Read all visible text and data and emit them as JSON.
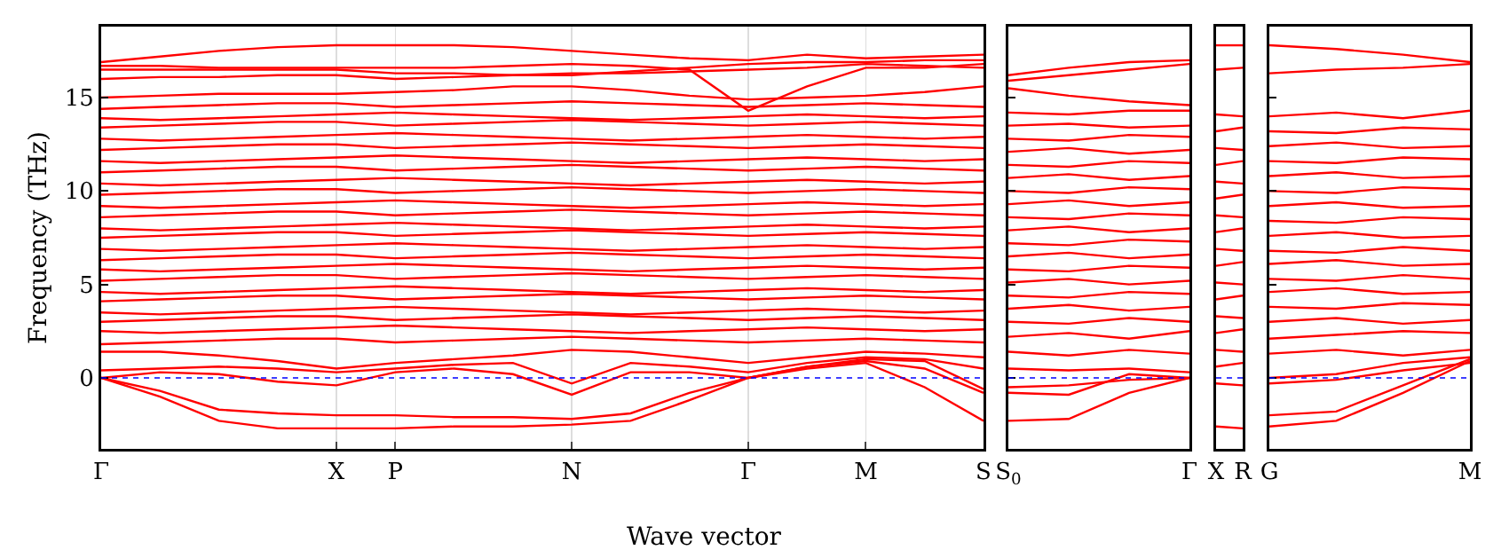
{
  "chart_data": [
    {
      "type": "line",
      "xlabel": "Wave vector",
      "ylabel": "Frequency (THz)",
      "ylim": [
        -3.8,
        18.8
      ],
      "yticks": [
        0,
        5,
        10,
        15
      ],
      "categories": [
        "Γ",
        null,
        null,
        null,
        "X",
        "P",
        null,
        null,
        "N",
        null,
        null,
        "Γ",
        null,
        "M",
        null,
        "S"
      ],
      "grid": "x",
      "ref_lines": [
        {
          "axis": "y",
          "value": 0,
          "color": "#0000ff",
          "line_style": "dotted"
        }
      ],
      "series": [
        {
          "color": "#ff0000",
          "values": [
            0,
            -1.0,
            -2.3,
            -2.7,
            -2.7,
            -2.7,
            -2.6,
            -2.6,
            -2.5,
            -2.3,
            -1.2,
            0,
            0.5,
            0.8,
            -0.5,
            -2.3
          ]
        },
        {
          "color": "#ff0000",
          "values": [
            0,
            -0.7,
            -1.7,
            -1.9,
            -2.0,
            -2.0,
            -2.1,
            -2.1,
            -2.2,
            -1.9,
            -0.8,
            0,
            0.6,
            0.9,
            0.5,
            -0.8
          ]
        },
        {
          "color": "#ff0000",
          "values": [
            0,
            0.3,
            0.2,
            -0.2,
            -0.4,
            0.3,
            0.5,
            0.2,
            -0.9,
            0.3,
            0.3,
            0,
            0.6,
            1.0,
            0.9,
            -0.6
          ]
        },
        {
          "color": "#ff0000",
          "values": [
            0.4,
            0.5,
            0.6,
            0.5,
            0.3,
            0.5,
            0.7,
            0.8,
            -0.3,
            0.8,
            0.6,
            0.3,
            0.8,
            1.1,
            1.0,
            0.5
          ]
        },
        {
          "color": "#ff0000",
          "values": [
            1.4,
            1.4,
            1.2,
            0.9,
            0.5,
            0.8,
            1.0,
            1.2,
            1.5,
            1.4,
            1.1,
            0.8,
            1.1,
            1.4,
            1.3,
            1.1
          ]
        },
        {
          "color": "#ff0000",
          "values": [
            1.8,
            1.9,
            2.0,
            2.1,
            2.1,
            1.9,
            2.0,
            2.1,
            2.2,
            2.1,
            2.0,
            1.9,
            2.0,
            2.1,
            2.0,
            1.9
          ]
        },
        {
          "color": "#ff0000",
          "values": [
            2.5,
            2.4,
            2.5,
            2.6,
            2.7,
            2.8,
            2.7,
            2.6,
            2.5,
            2.4,
            2.5,
            2.6,
            2.7,
            2.6,
            2.5,
            2.6
          ]
        },
        {
          "color": "#ff0000",
          "values": [
            3.0,
            3.1,
            3.2,
            3.3,
            3.3,
            3.1,
            3.2,
            3.3,
            3.4,
            3.3,
            3.2,
            3.1,
            3.2,
            3.3,
            3.2,
            3.1
          ]
        },
        {
          "color": "#ff0000",
          "values": [
            3.5,
            3.4,
            3.5,
            3.6,
            3.7,
            3.8,
            3.7,
            3.6,
            3.5,
            3.4,
            3.5,
            3.6,
            3.7,
            3.6,
            3.5,
            3.6
          ]
        },
        {
          "color": "#ff0000",
          "values": [
            4.1,
            4.2,
            4.3,
            4.4,
            4.4,
            4.2,
            4.3,
            4.4,
            4.5,
            4.4,
            4.3,
            4.2,
            4.3,
            4.4,
            4.3,
            4.2
          ]
        },
        {
          "color": "#ff0000",
          "values": [
            4.6,
            4.5,
            4.6,
            4.7,
            4.8,
            4.9,
            4.8,
            4.7,
            4.6,
            4.5,
            4.6,
            4.7,
            4.8,
            4.7,
            4.6,
            4.7
          ]
        },
        {
          "color": "#ff0000",
          "values": [
            5.2,
            5.3,
            5.4,
            5.5,
            5.5,
            5.3,
            5.4,
            5.5,
            5.6,
            5.5,
            5.4,
            5.3,
            5.4,
            5.5,
            5.4,
            5.3
          ]
        },
        {
          "color": "#ff0000",
          "values": [
            5.8,
            5.7,
            5.8,
            5.9,
            6.0,
            6.1,
            6.0,
            5.9,
            5.8,
            5.7,
            5.8,
            5.9,
            6.0,
            5.9,
            5.8,
            5.9
          ]
        },
        {
          "color": "#ff0000",
          "values": [
            6.3,
            6.4,
            6.5,
            6.6,
            6.6,
            6.4,
            6.5,
            6.6,
            6.7,
            6.6,
            6.5,
            6.4,
            6.5,
            6.6,
            6.5,
            6.4
          ]
        },
        {
          "color": "#ff0000",
          "values": [
            6.9,
            6.8,
            6.9,
            7.0,
            7.1,
            7.2,
            7.1,
            7.0,
            6.9,
            6.8,
            6.9,
            7.0,
            7.1,
            7.0,
            6.9,
            7.0
          ]
        },
        {
          "color": "#ff0000",
          "values": [
            7.5,
            7.6,
            7.7,
            7.8,
            7.8,
            7.6,
            7.7,
            7.8,
            7.9,
            7.8,
            7.7,
            7.6,
            7.7,
            7.8,
            7.7,
            7.6
          ]
        },
        {
          "color": "#ff0000",
          "values": [
            8.0,
            7.9,
            8.0,
            8.1,
            8.2,
            8.3,
            8.2,
            8.1,
            8.0,
            7.9,
            8.0,
            8.1,
            8.2,
            8.1,
            8.0,
            8.1
          ]
        },
        {
          "color": "#ff0000",
          "values": [
            8.6,
            8.7,
            8.8,
            8.9,
            8.9,
            8.7,
            8.8,
            8.9,
            9.0,
            8.9,
            8.8,
            8.7,
            8.8,
            8.9,
            8.8,
            8.7
          ]
        },
        {
          "color": "#ff0000",
          "values": [
            9.2,
            9.1,
            9.2,
            9.3,
            9.4,
            9.5,
            9.4,
            9.3,
            9.2,
            9.1,
            9.2,
            9.3,
            9.4,
            9.3,
            9.2,
            9.3
          ]
        },
        {
          "color": "#ff0000",
          "values": [
            9.8,
            9.9,
            10.0,
            10.1,
            10.1,
            9.9,
            10.0,
            10.1,
            10.2,
            10.1,
            10.0,
            9.9,
            10.0,
            10.1,
            10.0,
            9.9
          ]
        },
        {
          "color": "#ff0000",
          "values": [
            10.4,
            10.3,
            10.4,
            10.5,
            10.6,
            10.7,
            10.6,
            10.5,
            10.4,
            10.3,
            10.4,
            10.5,
            10.6,
            10.5,
            10.4,
            10.5
          ]
        },
        {
          "color": "#ff0000",
          "values": [
            11.0,
            11.1,
            11.2,
            11.3,
            11.3,
            11.1,
            11.2,
            11.3,
            11.4,
            11.3,
            11.2,
            11.1,
            11.2,
            11.3,
            11.2,
            11.1
          ]
        },
        {
          "color": "#ff0000",
          "values": [
            11.6,
            11.5,
            11.6,
            11.7,
            11.8,
            11.9,
            11.8,
            11.7,
            11.6,
            11.5,
            11.6,
            11.7,
            11.8,
            11.7,
            11.6,
            11.7
          ]
        },
        {
          "color": "#ff0000",
          "values": [
            12.2,
            12.3,
            12.4,
            12.5,
            12.5,
            12.3,
            12.4,
            12.5,
            12.6,
            12.5,
            12.4,
            12.3,
            12.4,
            12.5,
            12.4,
            12.3
          ]
        },
        {
          "color": "#ff0000",
          "values": [
            12.8,
            12.7,
            12.8,
            12.9,
            13.0,
            13.1,
            13.0,
            12.9,
            12.8,
            12.7,
            12.8,
            12.9,
            13.0,
            12.9,
            12.8,
            12.9
          ]
        },
        {
          "color": "#ff0000",
          "values": [
            13.4,
            13.5,
            13.6,
            13.7,
            13.7,
            13.5,
            13.6,
            13.7,
            13.8,
            13.7,
            13.6,
            13.5,
            13.6,
            13.7,
            13.6,
            13.5
          ]
        },
        {
          "color": "#ff0000",
          "values": [
            13.9,
            13.8,
            13.9,
            14.0,
            14.1,
            14.2,
            14.1,
            14.0,
            13.9,
            13.8,
            13.9,
            14.0,
            14.1,
            14.0,
            13.9,
            14.0
          ]
        },
        {
          "color": "#ff0000",
          "values": [
            14.4,
            14.5,
            14.6,
            14.7,
            14.7,
            14.5,
            14.6,
            14.7,
            14.8,
            14.7,
            14.6,
            14.5,
            14.6,
            14.7,
            14.6,
            14.5
          ]
        },
        {
          "color": "#ff0000",
          "values": [
            15.0,
            15.1,
            15.2,
            15.2,
            15.2,
            15.3,
            15.4,
            15.6,
            15.6,
            15.4,
            15.1,
            14.9,
            15.0,
            15.1,
            15.3,
            15.6
          ]
        },
        {
          "color": "#ff0000",
          "values": [
            16.0,
            16.1,
            16.1,
            16.2,
            16.2,
            16.0,
            16.1,
            16.2,
            16.3,
            16.3,
            16.4,
            16.5,
            16.6,
            16.8,
            16.7,
            16.6
          ]
        },
        {
          "color": "#ff0000",
          "values": [
            16.5,
            16.5,
            16.5,
            16.5,
            16.5,
            16.3,
            16.3,
            16.2,
            16.2,
            16.4,
            16.6,
            16.8,
            16.9,
            16.9,
            17.0,
            17.0
          ]
        },
        {
          "color": "#ff0000",
          "values": [
            16.9,
            17.2,
            17.5,
            17.7,
            17.8,
            17.8,
            17.8,
            17.7,
            17.5,
            17.3,
            17.1,
            17.0,
            17.3,
            17.1,
            17.2,
            17.3
          ]
        },
        {
          "color": "#ff0000",
          "values": [
            16.7,
            16.7,
            16.6,
            16.6,
            16.6,
            16.6,
            16.6,
            16.7,
            16.8,
            16.7,
            16.5,
            14.3,
            15.6,
            16.6,
            16.6,
            16.8
          ]
        }
      ]
    },
    {
      "type": "line",
      "ylim": [
        -3.8,
        18.8
      ],
      "yticks": [
        0,
        5,
        10,
        15
      ],
      "tick_labels": "x",
      "categories": [
        "S$_{0}$",
        null,
        null,
        "Γ"
      ],
      "ref_lines": [
        {
          "axis": "y",
          "value": 0,
          "color": "#0000ff",
          "line_style": "dotted"
        }
      ],
      "series": [
        {
          "color": "#ff0000",
          "values": [
            -2.3,
            -2.2,
            -0.8,
            0
          ]
        },
        {
          "color": "#ff0000",
          "values": [
            -0.8,
            -0.9,
            0.2,
            0
          ]
        },
        {
          "color": "#ff0000",
          "values": [
            -0.5,
            -0.4,
            -0.1,
            0
          ]
        },
        {
          "color": "#ff0000",
          "values": [
            0.5,
            0.4,
            0.5,
            0.3
          ]
        },
        {
          "color": "#ff0000",
          "values": [
            1.4,
            1.2,
            1.5,
            1.3
          ]
        },
        {
          "color": "#ff0000",
          "values": [
            2.2,
            2.4,
            2.1,
            2.5
          ]
        },
        {
          "color": "#ff0000",
          "values": [
            3.0,
            2.9,
            3.2,
            3.0
          ]
        },
        {
          "color": "#ff0000",
          "values": [
            3.7,
            3.9,
            3.6,
            3.8
          ]
        },
        {
          "color": "#ff0000",
          "values": [
            4.4,
            4.3,
            4.6,
            4.5
          ]
        },
        {
          "color": "#ff0000",
          "values": [
            5.1,
            5.3,
            5.0,
            5.2
          ]
        },
        {
          "color": "#ff0000",
          "values": [
            5.8,
            5.7,
            6.0,
            5.9
          ]
        },
        {
          "color": "#ff0000",
          "values": [
            6.5,
            6.7,
            6.4,
            6.6
          ]
        },
        {
          "color": "#ff0000",
          "values": [
            7.2,
            7.1,
            7.4,
            7.3
          ]
        },
        {
          "color": "#ff0000",
          "values": [
            7.9,
            8.1,
            7.8,
            8.0
          ]
        },
        {
          "color": "#ff0000",
          "values": [
            8.6,
            8.5,
            8.8,
            8.7
          ]
        },
        {
          "color": "#ff0000",
          "values": [
            9.3,
            9.5,
            9.2,
            9.4
          ]
        },
        {
          "color": "#ff0000",
          "values": [
            10.0,
            9.9,
            10.2,
            10.1
          ]
        },
        {
          "color": "#ff0000",
          "values": [
            10.7,
            10.9,
            10.6,
            10.8
          ]
        },
        {
          "color": "#ff0000",
          "values": [
            11.4,
            11.3,
            11.6,
            11.5
          ]
        },
        {
          "color": "#ff0000",
          "values": [
            12.1,
            12.3,
            12.0,
            12.2
          ]
        },
        {
          "color": "#ff0000",
          "values": [
            12.8,
            12.7,
            13.0,
            12.9
          ]
        },
        {
          "color": "#ff0000",
          "values": [
            13.5,
            13.6,
            13.4,
            13.5
          ]
        },
        {
          "color": "#ff0000",
          "values": [
            14.2,
            14.1,
            14.3,
            14.3
          ]
        },
        {
          "color": "#ff0000",
          "values": [
            15.5,
            15.1,
            14.8,
            14.6
          ]
        },
        {
          "color": "#ff0000",
          "values": [
            15.9,
            16.2,
            16.5,
            16.8
          ]
        },
        {
          "color": "#ff0000",
          "values": [
            16.2,
            16.6,
            16.9,
            17.0
          ]
        }
      ]
    },
    {
      "type": "line",
      "ylim": [
        -3.8,
        18.8
      ],
      "tick_labels": "x",
      "categories": [
        "X",
        "R"
      ],
      "ref_lines": [
        {
          "axis": "y",
          "value": 0,
          "color": "#0000ff",
          "line_style": "dotted"
        }
      ],
      "series": [
        {
          "color": "#ff0000",
          "values": [
            -2.6,
            -2.7
          ]
        },
        {
          "color": "#ff0000",
          "values": [
            -0.3,
            -0.4
          ]
        },
        {
          "color": "#ff0000",
          "values": [
            0.6,
            0.8
          ]
        },
        {
          "color": "#ff0000",
          "values": [
            1.5,
            1.4
          ]
        },
        {
          "color": "#ff0000",
          "values": [
            2.4,
            2.6
          ]
        },
        {
          "color": "#ff0000",
          "values": [
            3.3,
            3.2
          ]
        },
        {
          "color": "#ff0000",
          "values": [
            4.2,
            4.4
          ]
        },
        {
          "color": "#ff0000",
          "values": [
            5.1,
            5.0
          ]
        },
        {
          "color": "#ff0000",
          "values": [
            6.0,
            6.2
          ]
        },
        {
          "color": "#ff0000",
          "values": [
            6.9,
            6.8
          ]
        },
        {
          "color": "#ff0000",
          "values": [
            7.8,
            8.0
          ]
        },
        {
          "color": "#ff0000",
          "values": [
            8.7,
            8.6
          ]
        },
        {
          "color": "#ff0000",
          "values": [
            9.6,
            9.8
          ]
        },
        {
          "color": "#ff0000",
          "values": [
            10.5,
            10.4
          ]
        },
        {
          "color": "#ff0000",
          "values": [
            11.4,
            11.6
          ]
        },
        {
          "color": "#ff0000",
          "values": [
            12.3,
            12.2
          ]
        },
        {
          "color": "#ff0000",
          "values": [
            13.2,
            13.4
          ]
        },
        {
          "color": "#ff0000",
          "values": [
            14.1,
            14.0
          ]
        },
        {
          "color": "#ff0000",
          "values": [
            16.5,
            16.6
          ]
        },
        {
          "color": "#ff0000",
          "values": [
            17.8,
            17.8
          ]
        }
      ]
    },
    {
      "type": "line",
      "ylim": [
        -3.8,
        18.8
      ],
      "yticks": [
        0,
        5,
        10,
        15
      ],
      "tick_labels": "x",
      "categories": [
        "G",
        null,
        null,
        "M"
      ],
      "ref_lines": [
        {
          "axis": "y",
          "value": 0,
          "color": "#0000ff",
          "line_style": "dotted"
        }
      ],
      "series": [
        {
          "color": "#ff0000",
          "values": [
            -2.6,
            -2.3,
            -0.8,
            0.9
          ]
        },
        {
          "color": "#ff0000",
          "values": [
            -2.0,
            -1.8,
            -0.4,
            1.0
          ]
        },
        {
          "color": "#ff0000",
          "values": [
            -0.3,
            -0.1,
            0.4,
            0.8
          ]
        },
        {
          "color": "#ff0000",
          "values": [
            0,
            0.2,
            0.8,
            1.1
          ]
        },
        {
          "color": "#ff0000",
          "values": [
            1.3,
            1.5,
            1.2,
            1.5
          ]
        },
        {
          "color": "#ff0000",
          "values": [
            2.1,
            2.3,
            2.5,
            2.4
          ]
        },
        {
          "color": "#ff0000",
          "values": [
            3.0,
            3.2,
            2.9,
            3.1
          ]
        },
        {
          "color": "#ff0000",
          "values": [
            3.8,
            3.7,
            4.0,
            3.9
          ]
        },
        {
          "color": "#ff0000",
          "values": [
            4.6,
            4.8,
            4.5,
            4.6
          ]
        },
        {
          "color": "#ff0000",
          "values": [
            5.3,
            5.2,
            5.5,
            5.3
          ]
        },
        {
          "color": "#ff0000",
          "values": [
            6.1,
            6.3,
            6.0,
            6.1
          ]
        },
        {
          "color": "#ff0000",
          "values": [
            6.8,
            6.7,
            7.0,
            6.8
          ]
        },
        {
          "color": "#ff0000",
          "values": [
            7.6,
            7.8,
            7.5,
            7.6
          ]
        },
        {
          "color": "#ff0000",
          "values": [
            8.4,
            8.3,
            8.6,
            8.5
          ]
        },
        {
          "color": "#ff0000",
          "values": [
            9.2,
            9.4,
            9.1,
            9.2
          ]
        },
        {
          "color": "#ff0000",
          "values": [
            10.0,
            9.9,
            10.2,
            10.1
          ]
        },
        {
          "color": "#ff0000",
          "values": [
            10.8,
            11.0,
            10.7,
            10.8
          ]
        },
        {
          "color": "#ff0000",
          "values": [
            11.6,
            11.5,
            11.8,
            11.7
          ]
        },
        {
          "color": "#ff0000",
          "values": [
            12.4,
            12.6,
            12.3,
            12.4
          ]
        },
        {
          "color": "#ff0000",
          "values": [
            13.2,
            13.1,
            13.4,
            13.3
          ]
        },
        {
          "color": "#ff0000",
          "values": [
            14.0,
            14.2,
            13.9,
            14.3
          ]
        },
        {
          "color": "#ff0000",
          "values": [
            16.3,
            16.5,
            16.6,
            16.8
          ]
        },
        {
          "color": "#ff0000",
          "values": [
            17.8,
            17.6,
            17.3,
            16.9
          ]
        }
      ]
    }
  ]
}
